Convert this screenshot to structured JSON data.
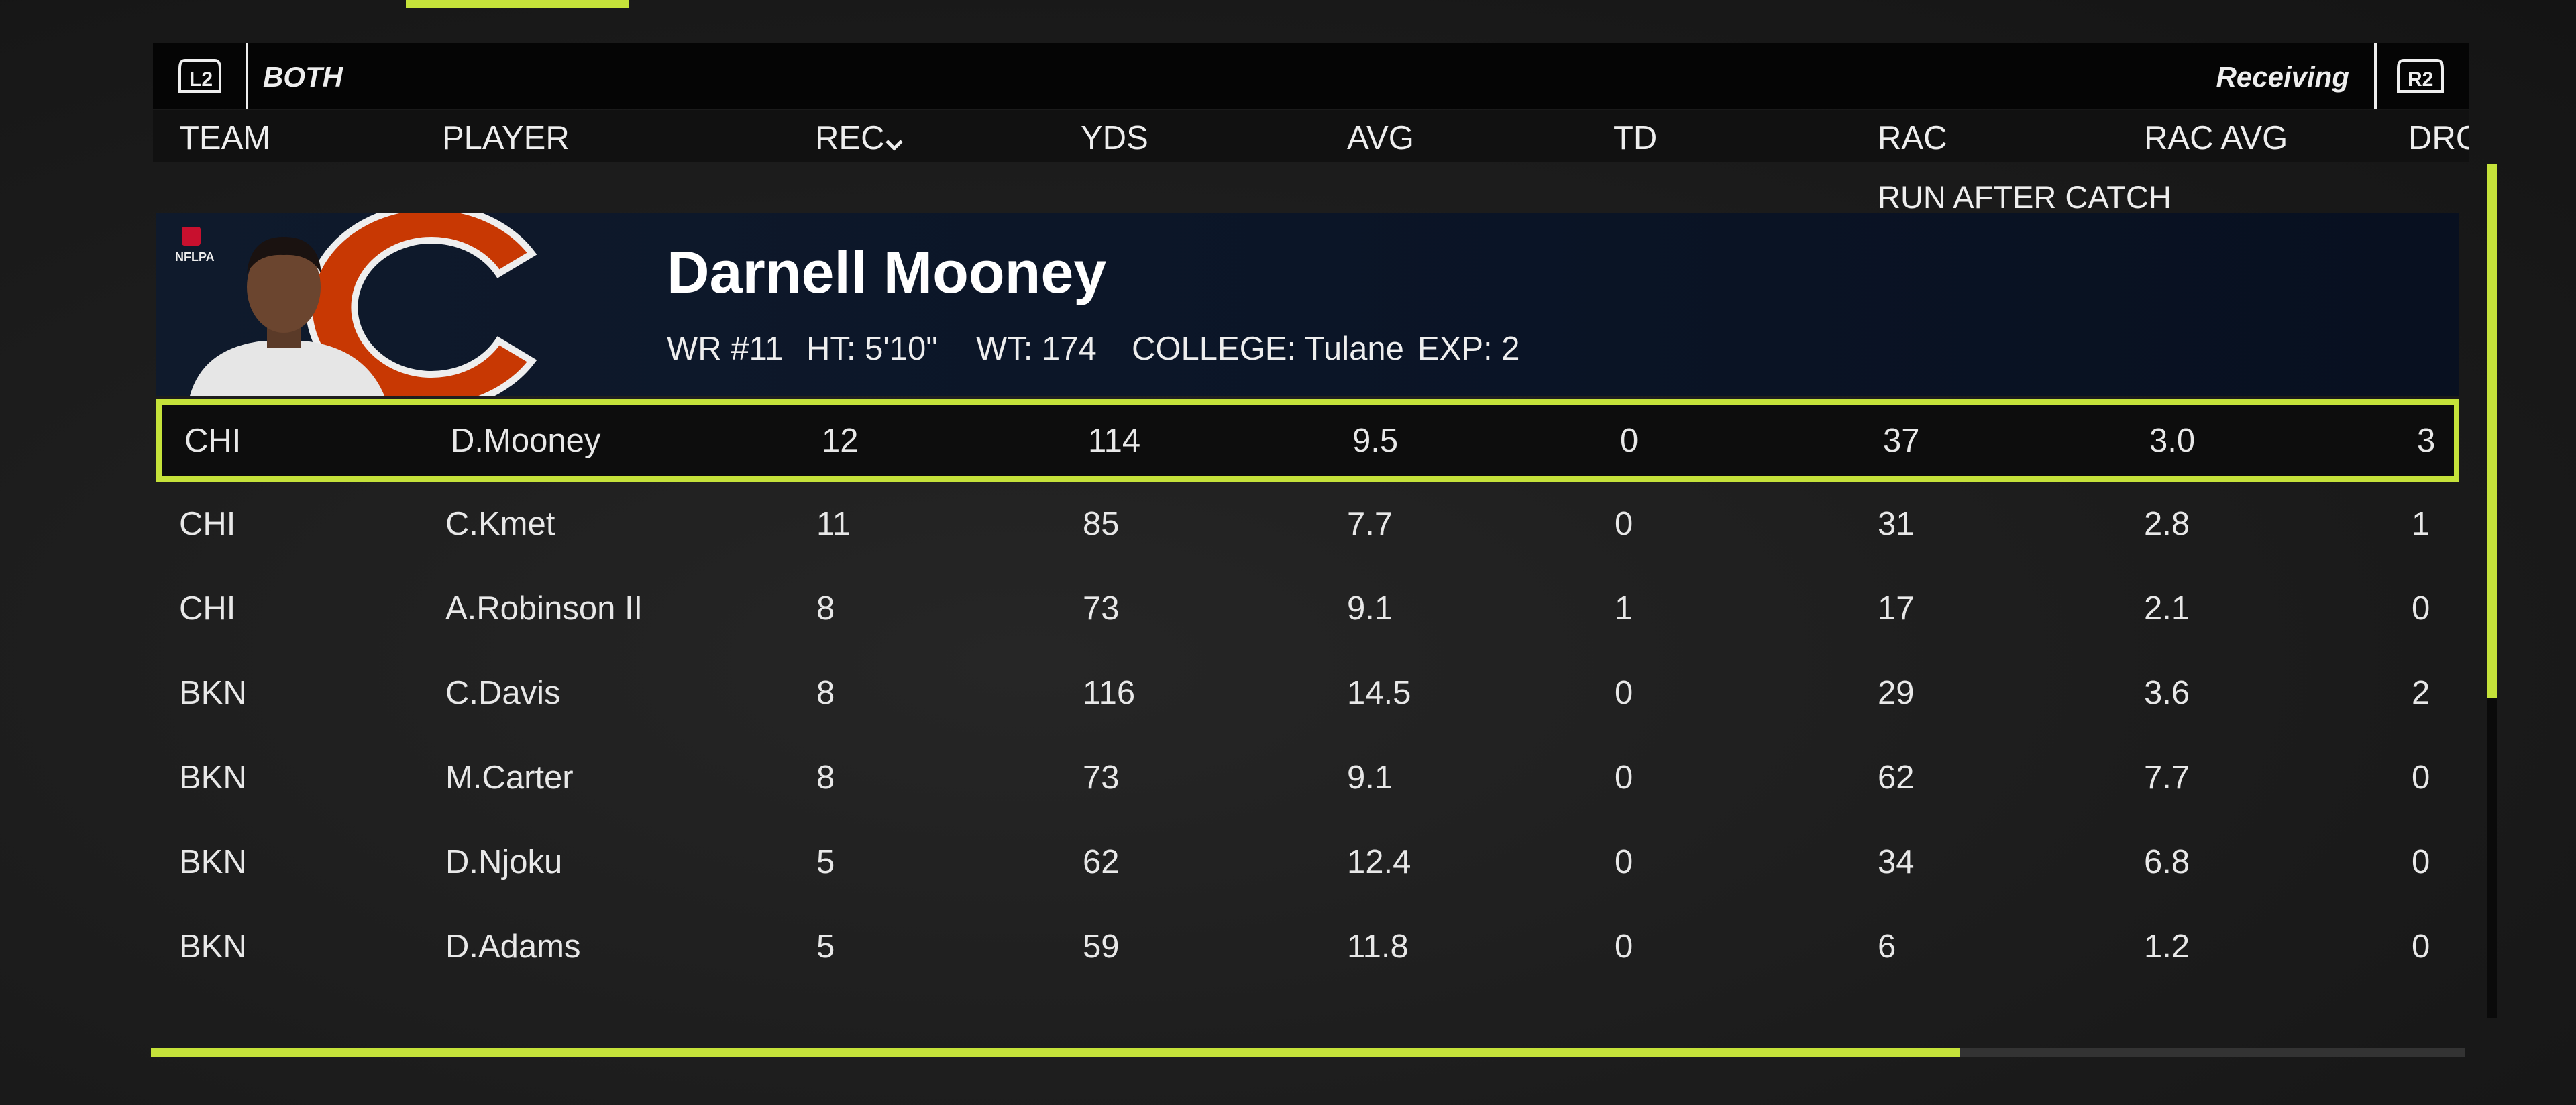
{
  "header": {
    "left_button": "L2",
    "filter": "BOTH",
    "category": "Receiving",
    "right_button": "R2"
  },
  "columns": [
    "TEAM",
    "PLAYER",
    "REC",
    "YDS",
    "AVG",
    "TD",
    "RAC",
    "RAC AVG",
    "DRC"
  ],
  "tooltip": "RUN AFTER CATCH",
  "player_card": {
    "badge": "NFLPA",
    "name": "Darnell Mooney",
    "details": [
      "WR #11",
      "HT: 5'10\"",
      "WT: 174",
      "COLLEGE: Tulane",
      "EXP: 2"
    ]
  },
  "table": {
    "rows": [
      [
        "CHI",
        "D.Mooney",
        "12",
        "114",
        "9.5",
        "0",
        "37",
        "3.0",
        "3"
      ],
      [
        "CHI",
        "C.Kmet",
        "11",
        "85",
        "7.7",
        "0",
        "31",
        "2.8",
        "1"
      ],
      [
        "CHI",
        "A.Robinson II",
        "8",
        "73",
        "9.1",
        "1",
        "17",
        "2.1",
        "0"
      ],
      [
        "BKN",
        "C.Davis",
        "8",
        "116",
        "14.5",
        "0",
        "29",
        "3.6",
        "2"
      ],
      [
        "BKN",
        "M.Carter",
        "8",
        "73",
        "9.1",
        "0",
        "62",
        "7.7",
        "0"
      ],
      [
        "BKN",
        "D.Njoku",
        "5",
        "62",
        "12.4",
        "0",
        "34",
        "6.8",
        "0"
      ],
      [
        "BKN",
        "D.Adams",
        "5",
        "59",
        "11.8",
        "0",
        "6",
        "1.2",
        "0"
      ]
    ]
  }
}
